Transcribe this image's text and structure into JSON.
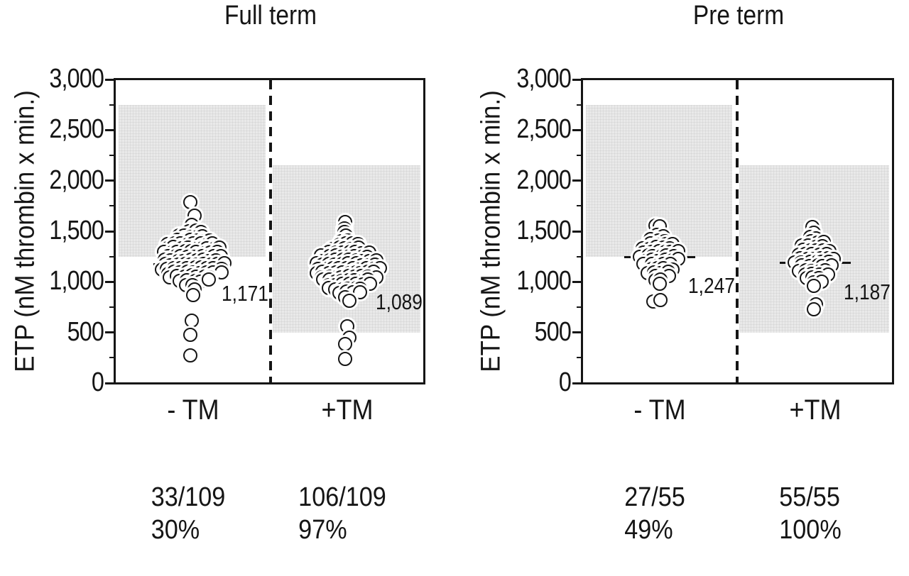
{
  "figure": {
    "background": "#ffffff",
    "ink_color": "#151515",
    "shade_color": "#e9e9e9"
  },
  "chart_data": {
    "type": "scatter",
    "subtype": "beeswarm-dot-plot",
    "ylabel": "ETP (nM thrombin x min.)",
    "ylim": [
      0,
      3000
    ],
    "ytick_values": [
      3000,
      2500,
      2000,
      1500,
      1000,
      500,
      0
    ],
    "ytick_labels": [
      "3,000",
      "2,500",
      "2,000",
      "1,500",
      "1,000",
      "500",
      "0"
    ],
    "yminor_values": [
      2750,
      2250,
      1750,
      1250,
      750,
      250
    ],
    "grid": false,
    "panels": [
      {
        "title": "Full term",
        "groups": [
          {
            "x_label": "- TM",
            "n": 109,
            "median": 1171,
            "median_label": "1,171",
            "count_label": "33/109",
            "pct_label": "30%",
            "shaded_range": [
              1250,
              2750
            ],
            "swarm_levels": [
              [
                1780,
                1
              ],
              [
                1650,
                1
              ],
              [
                1565,
                1
              ],
              [
                1490,
                3
              ],
              [
                1450,
                5
              ],
              [
                1410,
                6
              ],
              [
                1370,
                8
              ],
              [
                1330,
                9
              ],
              [
                1290,
                9
              ],
              [
                1250,
                9
              ],
              [
                1210,
                9
              ],
              [
                1170,
                10
              ],
              [
                1130,
                10
              ],
              [
                1090,
                9
              ],
              [
                1050,
                7
              ],
              [
                1010,
                5
              ],
              [
                970,
                2
              ],
              [
                930,
                1
              ],
              [
                870,
                1
              ],
              [
                610,
                1
              ],
              [
                470,
                1
              ],
              [
                270,
                1
              ]
            ]
          },
          {
            "x_label": "+TM",
            "n": 109,
            "median": 1089,
            "median_label": "1,089",
            "count_label": "106/109",
            "pct_label": "97%",
            "shaded_range": [
              500,
              2150
            ],
            "swarm_levels": [
              [
                1590,
                1
              ],
              [
                1530,
                1
              ],
              [
                1500,
                1
              ],
              [
                1450,
                1
              ],
              [
                1410,
                2
              ],
              [
                1370,
                4
              ],
              [
                1330,
                5
              ],
              [
                1290,
                7
              ],
              [
                1250,
                8
              ],
              [
                1210,
                9
              ],
              [
                1170,
                10
              ],
              [
                1130,
                10
              ],
              [
                1090,
                10
              ],
              [
                1050,
                9
              ],
              [
                1010,
                8
              ],
              [
                970,
                7
              ],
              [
                930,
                6
              ],
              [
                890,
                4
              ],
              [
                850,
                1
              ],
              [
                810,
                1
              ],
              [
                560,
                1
              ],
              [
                450,
                1
              ],
              [
                390,
                1
              ],
              [
                240,
                1
              ]
            ]
          }
        ]
      },
      {
        "title": "Pre term",
        "groups": [
          {
            "x_label": "- TM",
            "n": 55,
            "median": 1247,
            "median_label": "1,247",
            "count_label": "27/55",
            "pct_label": "49%",
            "shaded_range": [
              1250,
              2750
            ],
            "swarm_levels": [
              [
                1550,
                2
              ],
              [
                1450,
                2
              ],
              [
                1410,
                3
              ],
              [
                1370,
                4
              ],
              [
                1330,
                5
              ],
              [
                1290,
                6
              ],
              [
                1250,
                6
              ],
              [
                1210,
                6
              ],
              [
                1170,
                5
              ],
              [
                1130,
                4
              ],
              [
                1090,
                4
              ],
              [
                1050,
                3
              ],
              [
                1010,
                2
              ],
              [
                970,
                1
              ],
              [
                815,
                2
              ]
            ]
          },
          {
            "x_label": "+TM",
            "n": 55,
            "median": 1187,
            "median_label": "1,187",
            "count_label": "55/55",
            "pct_label": "100%",
            "shaded_range": [
              500,
              2150
            ],
            "swarm_levels": [
              [
                1540,
                1
              ],
              [
                1490,
                1
              ],
              [
                1430,
                2
              ],
              [
                1390,
                3
              ],
              [
                1350,
                4
              ],
              [
                1310,
                5
              ],
              [
                1270,
                5
              ],
              [
                1230,
                6
              ],
              [
                1190,
                6
              ],
              [
                1150,
                5
              ],
              [
                1110,
                5
              ],
              [
                1070,
                4
              ],
              [
                1030,
                3
              ],
              [
                990,
                2
              ],
              [
                950,
                1
              ],
              [
                780,
                1
              ],
              [
                720,
                1
              ]
            ]
          }
        ]
      }
    ]
  }
}
